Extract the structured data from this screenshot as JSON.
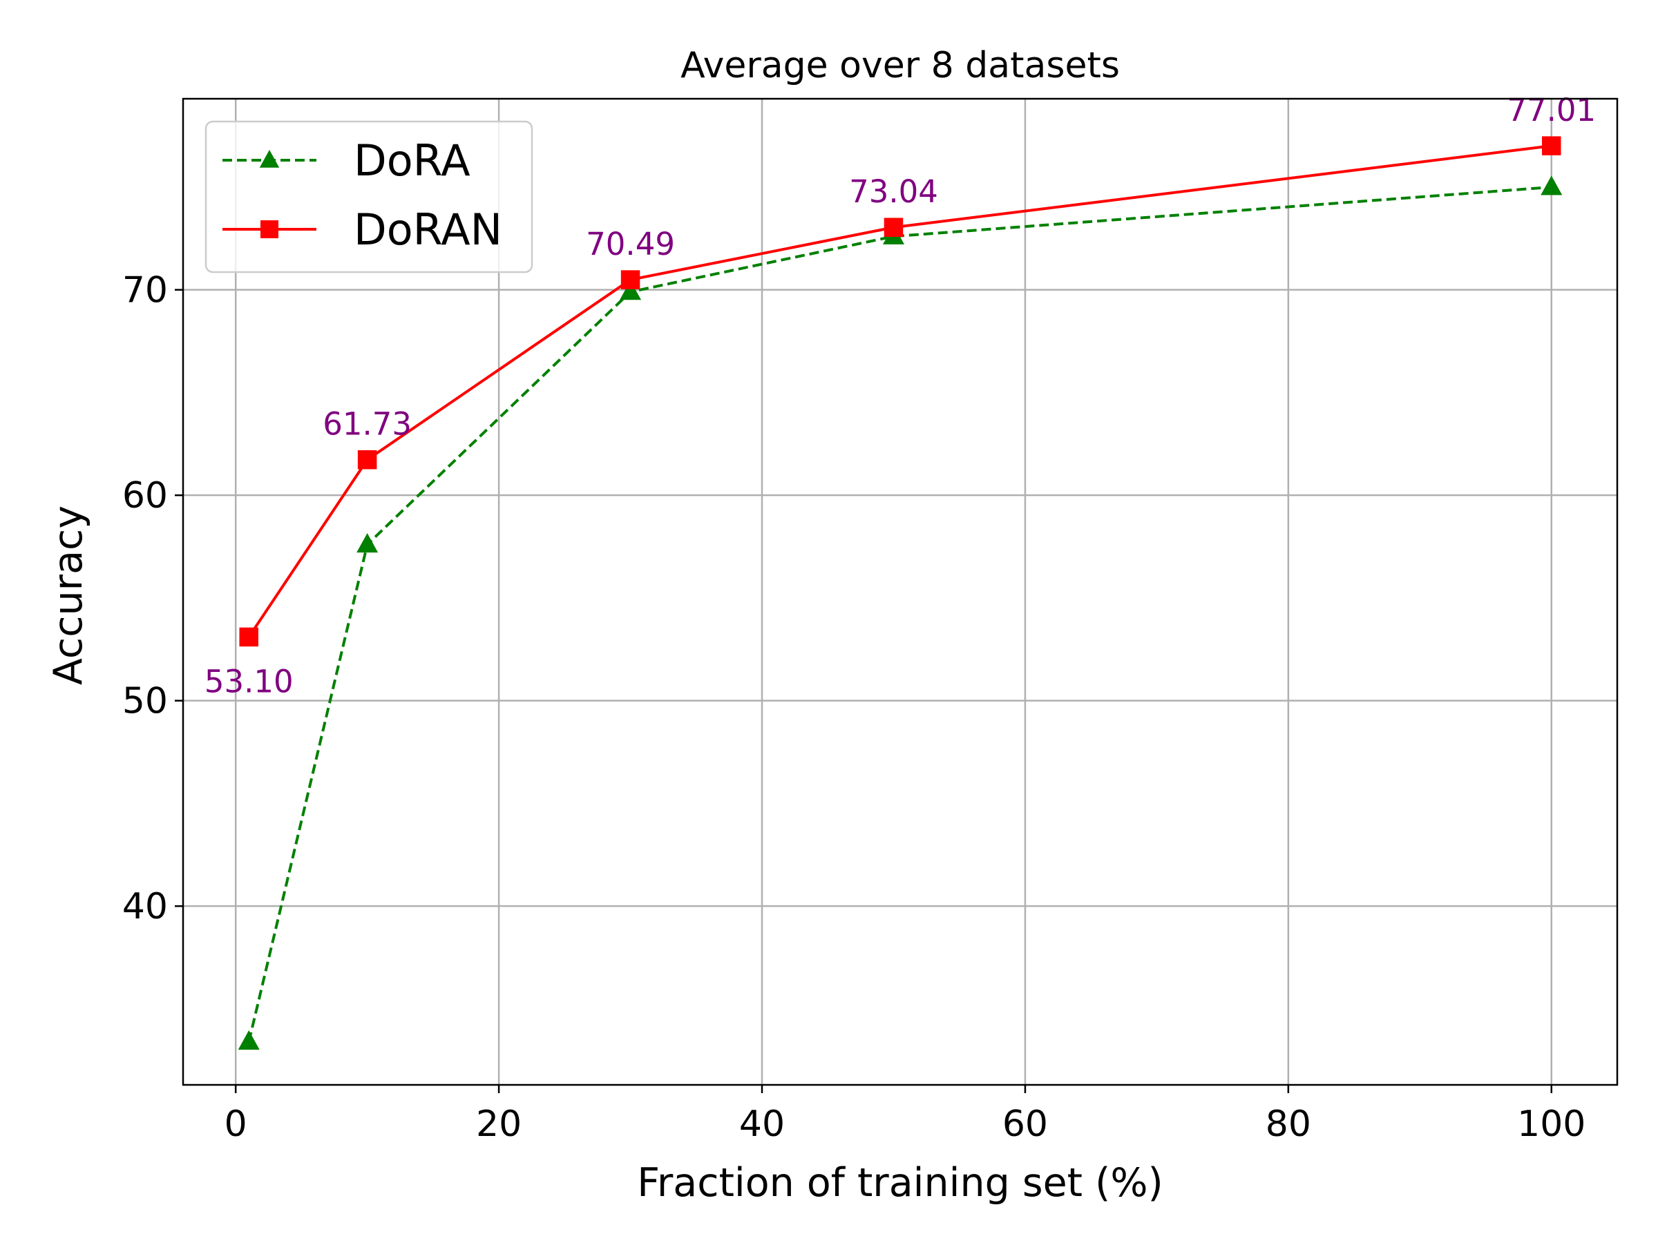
{
  "chart_data": {
    "type": "line",
    "title": "Average over 8 datasets",
    "xlabel": "Fraction of training set (%)",
    "ylabel": "Accuracy",
    "xlim": [
      -4,
      105
    ],
    "ylim": [
      31.3,
      79.3
    ],
    "xticks": [
      0,
      20,
      40,
      60,
      80,
      100
    ],
    "yticks": [
      40,
      50,
      60,
      70
    ],
    "grid": true,
    "legend_position": "top-left",
    "x": [
      1,
      10,
      30,
      50,
      100
    ],
    "series": [
      {
        "name": "DoRA",
        "values": [
          33.4,
          57.6,
          69.9,
          72.6,
          75.0
        ],
        "color": "#008000",
        "line_style": "dashed",
        "marker": "triangle"
      },
      {
        "name": "DoRAN",
        "values": [
          53.1,
          61.73,
          70.49,
          73.04,
          77.01
        ],
        "color": "#ff0000",
        "line_style": "solid",
        "marker": "square"
      }
    ],
    "annotations": {
      "series": "DoRAN",
      "color": "#800080",
      "labels": [
        "53.10",
        "61.73",
        "70.49",
        "73.04",
        "77.01"
      ]
    }
  }
}
